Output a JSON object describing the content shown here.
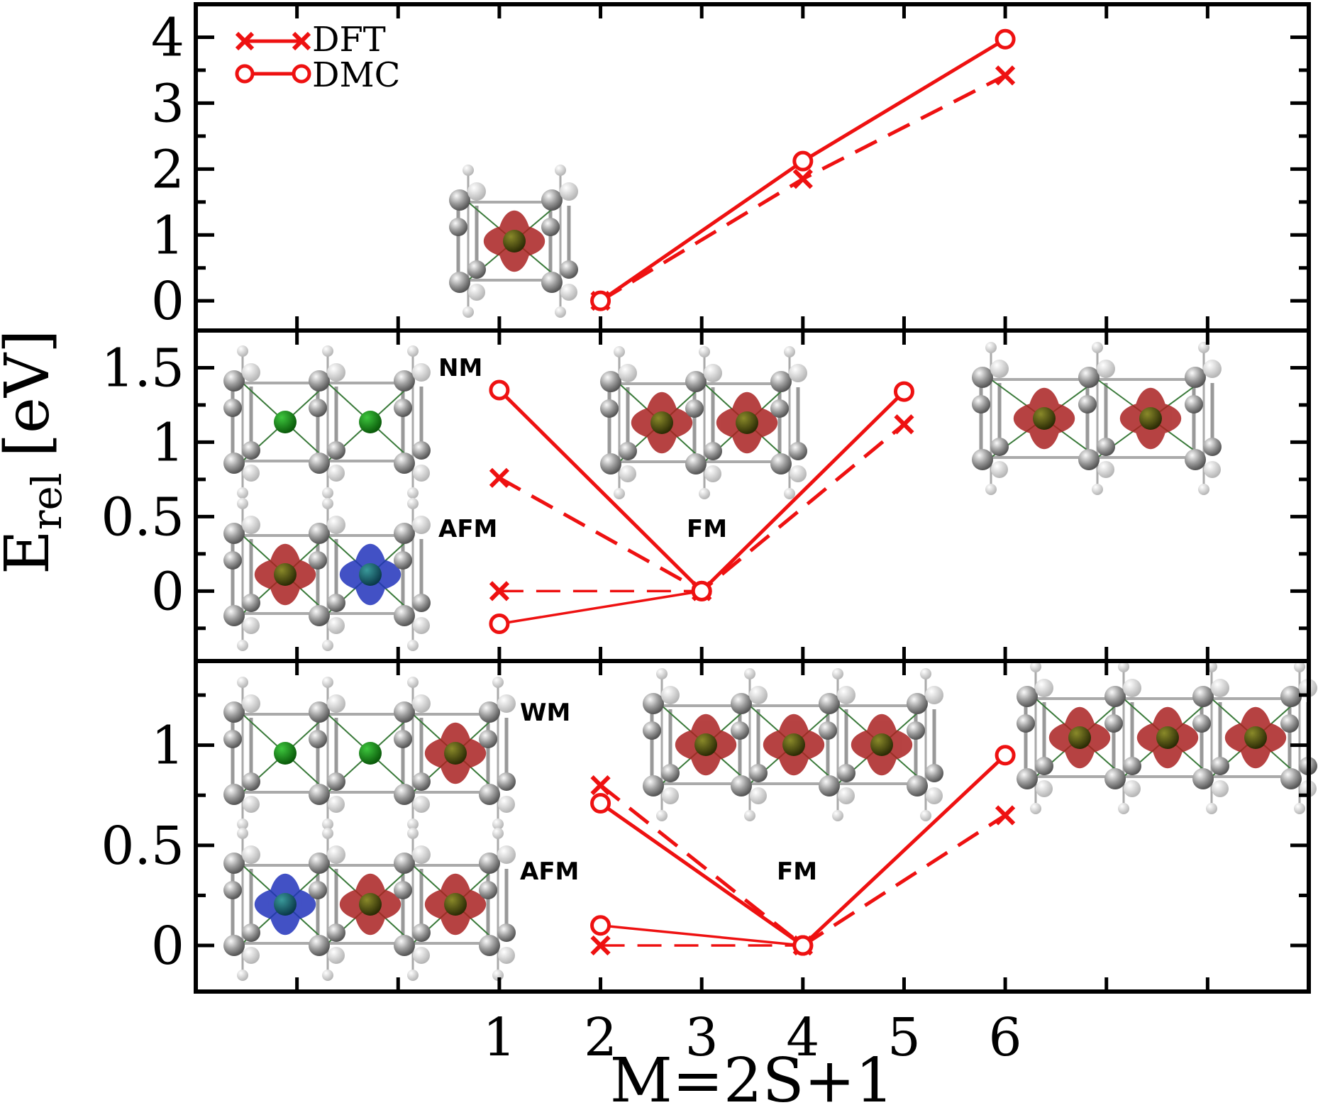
{
  "chart_data": {
    "type": "line",
    "xlabel": "M=2S+1",
    "ylabel": "E",
    "ylabel_sub": "rel",
    "ylabel_unit": "[eV]",
    "x_ticks": [
      1,
      2,
      3,
      4,
      5,
      6
    ],
    "x_tick_labels": [
      "1",
      "2",
      "3",
      "4",
      "5",
      "6"
    ],
    "xlim": [
      -2,
      9
    ],
    "colors": {
      "series": "#ee1111",
      "spin_up": "#aa2222",
      "spin_down": "#2233bb",
      "atom": "#777777",
      "metal": "#4a4a0a",
      "nm_metal": "#138a13"
    },
    "legend": {
      "position": "top-left",
      "entries": [
        {
          "label": "DFT",
          "marker": "x",
          "style": "solid"
        },
        {
          "label": "DMC",
          "marker": "o",
          "style": "solid"
        }
      ]
    },
    "panels": [
      {
        "name": "top",
        "ylim": [
          -0.45,
          4.5
        ],
        "y_ticks": [
          0,
          1,
          2,
          3,
          4
        ],
        "y_tick_labels": [
          "0",
          "1",
          "2",
          "3",
          "4"
        ],
        "series": [
          {
            "name": "DFT",
            "marker": "x",
            "dash": true,
            "groups": [
              {
                "x": [
                  2,
                  4,
                  6
                ],
                "y": [
                  0.0,
                  1.85,
                  3.42
                ]
              }
            ]
          },
          {
            "name": "DMC",
            "marker": "o",
            "dash": false,
            "groups": [
              {
                "x": [
                  2,
                  4,
                  6
                ],
                "y": [
                  0.0,
                  2.12,
                  3.97
                ]
              }
            ]
          }
        ],
        "annotations": []
      },
      {
        "name": "middle",
        "ylim": [
          -0.47,
          1.75
        ],
        "y_ticks": [
          0,
          0.5,
          1,
          1.5
        ],
        "y_tick_labels": [
          "0",
          "0.5",
          "1",
          "1.5"
        ],
        "series": [
          {
            "name": "DFT",
            "marker": "x",
            "dash": true,
            "groups": [
              {
                "x": [
                  1,
                  3,
                  5
                ],
                "y": [
                  0.76,
                  0.0,
                  1.12
                ]
              },
              {
                "x": [
                  1,
                  3
                ],
                "y": [
                  0.0,
                  0.0
                ]
              }
            ]
          },
          {
            "name": "DMC",
            "marker": "o",
            "dash": false,
            "groups": [
              {
                "x": [
                  1,
                  3,
                  5
                ],
                "y": [
                  1.35,
                  0.0,
                  1.34
                ]
              },
              {
                "x": [
                  1,
                  3
                ],
                "y": [
                  -0.22,
                  0.0
                ]
              }
            ]
          }
        ],
        "annotations": [
          "NM",
          "AFM",
          "FM"
        ]
      },
      {
        "name": "bottom",
        "ylim": [
          -0.23,
          1.42
        ],
        "y_ticks": [
          0,
          0.5,
          1
        ],
        "y_tick_labels": [
          "0",
          "0.5",
          "1"
        ],
        "series": [
          {
            "name": "DFT",
            "marker": "x",
            "dash": true,
            "groups": [
              {
                "x": [
                  2,
                  4,
                  6
                ],
                "y": [
                  0.8,
                  0.0,
                  0.65
                ]
              },
              {
                "x": [
                  2,
                  4
                ],
                "y": [
                  0.0,
                  0.0
                ]
              }
            ]
          },
          {
            "name": "DMC",
            "marker": "o",
            "dash": false,
            "groups": [
              {
                "x": [
                  2,
                  4,
                  6
                ],
                "y": [
                  0.71,
                  0.0,
                  0.95
                ]
              },
              {
                "x": [
                  2,
                  4
                ],
                "y": [
                  0.1,
                  0.0
                ]
              }
            ]
          }
        ],
        "annotations": [
          "WM",
          "AFM",
          "FM"
        ]
      }
    ]
  }
}
